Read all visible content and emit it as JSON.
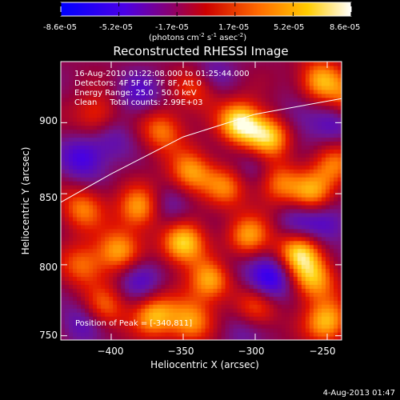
{
  "colorbar": {
    "tick_labels": [
      "-8.6e-05",
      "-5.2e-05",
      "-1.7e-05",
      "1.7e-05",
      "5.2e-05",
      "8.6e-05"
    ],
    "unit_label": "(photons cm",
    "unit_exp1": "-2",
    "unit_mid": " s",
    "unit_exp2": "-1",
    "unit_tail": " asec",
    "unit_exp3": "-2",
    "unit_close": ")",
    "colors": [
      "#0000ff",
      "#6a00ff",
      "#ff0000",
      "#ff8c00",
      "#ffff00",
      "#ffffff"
    ]
  },
  "chart_data": {
    "type": "heatmap",
    "title": "Reconstructed RHESSI Image",
    "xlabel": "Heliocentric X (arcsec)",
    "ylabel": "Heliocentric Y (arcsec)",
    "xlim": [
      -435,
      -240
    ],
    "ylim": [
      747,
      943
    ],
    "x_ticks": [
      -400,
      -350,
      -300,
      -250
    ],
    "y_ticks": [
      750,
      800,
      850,
      900
    ],
    "x_tick_labels": [
      "−400",
      "−350",
      "−300",
      "−250"
    ],
    "y_tick_labels": [
      "750",
      "800",
      "850",
      "900"
    ],
    "info_lines": [
      "16-Aug-2010 01:22:08.000 to 01:25:44.000",
      "Detectors: 4F 5F 6F 7F 8F, Att 0",
      "Energy Range: 25.0 - 50.0 keV",
      "Clean     Total counts: 2.99E+03"
    ],
    "peak_label": "Position of Peak = [-340,811]",
    "peak": [
      -340,
      811
    ],
    "limb_curve": [
      [
        -435,
        844
      ],
      [
        -400,
        864
      ],
      [
        -350,
        890
      ],
      [
        -300,
        906
      ],
      [
        -240,
        917
      ]
    ],
    "blobs": [
      {
        "x": -310,
        "y": 900,
        "v": 1.0
      },
      {
        "x": -290,
        "y": 890,
        "v": 0.85
      },
      {
        "x": -255,
        "y": 930,
        "v": 0.75
      },
      {
        "x": -235,
        "y": 915,
        "v": 0.55
      },
      {
        "x": -365,
        "y": 895,
        "v": 0.6
      },
      {
        "x": -345,
        "y": 865,
        "v": 0.7
      },
      {
        "x": -320,
        "y": 855,
        "v": 0.55
      },
      {
        "x": -285,
        "y": 858,
        "v": 0.6
      },
      {
        "x": -260,
        "y": 850,
        "v": 0.7
      },
      {
        "x": -245,
        "y": 870,
        "v": 0.55
      },
      {
        "x": -380,
        "y": 840,
        "v": 0.75
      },
      {
        "x": -395,
        "y": 810,
        "v": 0.7
      },
      {
        "x": -420,
        "y": 840,
        "v": 0.6
      },
      {
        "x": -420,
        "y": 800,
        "v": 0.55
      },
      {
        "x": -350,
        "y": 815,
        "v": 0.9
      },
      {
        "x": -330,
        "y": 790,
        "v": 0.85
      },
      {
        "x": -305,
        "y": 820,
        "v": 0.7
      },
      {
        "x": -270,
        "y": 810,
        "v": 0.85
      },
      {
        "x": -260,
        "y": 790,
        "v": 0.75
      },
      {
        "x": -250,
        "y": 760,
        "v": 0.8
      },
      {
        "x": -370,
        "y": 765,
        "v": 0.75
      },
      {
        "x": -345,
        "y": 760,
        "v": 0.7
      },
      {
        "x": -300,
        "y": 770,
        "v": 0.55
      },
      {
        "x": -405,
        "y": 770,
        "v": 0.55
      },
      {
        "x": -410,
        "y": 905,
        "v": 0.5
      },
      {
        "x": -380,
        "y": 920,
        "v": -0.4
      },
      {
        "x": -340,
        "y": 925,
        "v": 0.5
      },
      {
        "x": -420,
        "y": 875,
        "v": -0.55
      },
      {
        "x": -400,
        "y": 890,
        "v": -0.35
      },
      {
        "x": -360,
        "y": 840,
        "v": -0.35
      },
      {
        "x": -300,
        "y": 870,
        "v": -0.35
      },
      {
        "x": -270,
        "y": 830,
        "v": -0.4
      },
      {
        "x": -320,
        "y": 800,
        "v": -0.3
      },
      {
        "x": -290,
        "y": 790,
        "v": -0.75
      },
      {
        "x": -250,
        "y": 830,
        "v": -0.45
      },
      {
        "x": -245,
        "y": 900,
        "v": -0.4
      },
      {
        "x": -380,
        "y": 790,
        "v": -0.45
      },
      {
        "x": -420,
        "y": 760,
        "v": -0.4
      },
      {
        "x": -310,
        "y": 755,
        "v": -0.3
      },
      {
        "x": -270,
        "y": 905,
        "v": -0.3
      },
      {
        "x": -330,
        "y": 935,
        "v": -0.35
      }
    ]
  },
  "footer": {
    "date": "4-Aug-2013 01:47"
  }
}
